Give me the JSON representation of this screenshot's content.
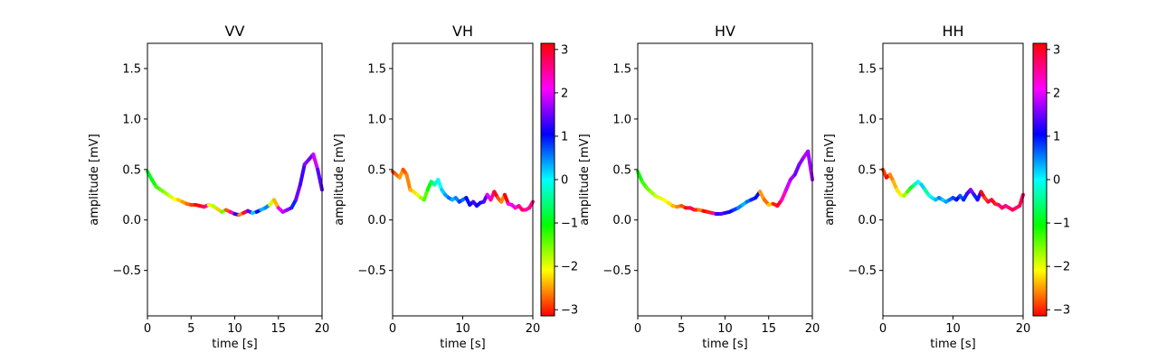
{
  "chart_data": [
    {
      "type": "line",
      "title": "VV",
      "xlabel": "time [s]",
      "ylabel": "amplitude [mV]",
      "xlim": [
        0,
        20
      ],
      "ylim": [
        -0.95,
        1.75
      ],
      "xticks": [
        0,
        5,
        10,
        15,
        20
      ],
      "yticks": [
        -0.5,
        0.0,
        0.5,
        1.0,
        1.5
      ],
      "color_by": "phase",
      "colormap": "hsv",
      "x": [
        0,
        0.5,
        1,
        1.5,
        2,
        2.5,
        3,
        3.5,
        4,
        4.5,
        5,
        5.5,
        6,
        6.5,
        7,
        7.5,
        8,
        8.5,
        9,
        9.5,
        10,
        10.5,
        11,
        11.5,
        12,
        12.5,
        13,
        13.5,
        14,
        14.5,
        15,
        15.5,
        16,
        16.5,
        17,
        17.5,
        18,
        18.5,
        19,
        19.5,
        20
      ],
      "y": [
        0.48,
        0.4,
        0.33,
        0.3,
        0.27,
        0.24,
        0.21,
        0.2,
        0.18,
        0.16,
        0.15,
        0.15,
        0.14,
        0.13,
        0.15,
        0.14,
        0.11,
        0.08,
        0.1,
        0.08,
        0.06,
        0.05,
        0.07,
        0.09,
        0.07,
        0.08,
        0.1,
        0.12,
        0.15,
        0.2,
        0.12,
        0.08,
        0.1,
        0.12,
        0.2,
        0.35,
        0.55,
        0.6,
        0.65,
        0.5,
        0.3
      ],
      "phase": [
        -0.9,
        -1.1,
        -1.3,
        -1.5,
        -1.7,
        -1.9,
        -2.1,
        -2.3,
        -2.5,
        -2.7,
        -2.9,
        -3.1,
        3.0,
        2.6,
        -2.0,
        -1.8,
        -2.3,
        -1.5,
        -2.8,
        2.4,
        1.2,
        -2.6,
        2.9,
        1.4,
        0.2,
        1.0,
        0.3,
        0.5,
        -1.9,
        -2.4,
        2.0,
        1.8,
        1.6,
        0.9,
        1.5,
        1.3,
        1.6,
        1.5,
        1.9,
        1.4,
        1.2
      ]
    },
    {
      "type": "line",
      "title": "VH",
      "xlabel": "time [s]",
      "ylabel": "amplitude [mV]",
      "xlim": [
        0,
        20
      ],
      "ylim": [
        -0.95,
        1.75
      ],
      "xticks": [
        0,
        10,
        20
      ],
      "yticks": [
        -0.5,
        0.0,
        0.5,
        1.0,
        1.5
      ],
      "color_by": "phase",
      "colormap": "hsv",
      "x": [
        0,
        0.5,
        1,
        1.5,
        2,
        2.5,
        3,
        3.5,
        4,
        4.5,
        5,
        5.5,
        6,
        6.5,
        7,
        7.5,
        8,
        8.5,
        9,
        9.5,
        10,
        10.5,
        11,
        11.5,
        12,
        12.5,
        13,
        13.5,
        14,
        14.5,
        15,
        15.5,
        16,
        16.5,
        17,
        17.5,
        18,
        18.5,
        19,
        19.5,
        20
      ],
      "y": [
        0.48,
        0.45,
        0.42,
        0.5,
        0.45,
        0.3,
        0.28,
        0.25,
        0.22,
        0.2,
        0.3,
        0.38,
        0.35,
        0.4,
        0.3,
        0.25,
        0.22,
        0.2,
        0.22,
        0.18,
        0.2,
        0.22,
        0.15,
        0.18,
        0.14,
        0.17,
        0.18,
        0.25,
        0.2,
        0.28,
        0.22,
        0.18,
        0.25,
        0.16,
        0.15,
        0.12,
        0.14,
        0.1,
        0.1,
        0.12,
        0.18
      ],
      "phase": [
        -2.9,
        -2.7,
        -2.5,
        -2.8,
        -2.6,
        -2.4,
        -2.2,
        -2.0,
        -1.7,
        -1.4,
        -1.0,
        -0.6,
        -0.3,
        0.0,
        0.2,
        0.4,
        0.6,
        0.3,
        0.5,
        0.8,
        0.6,
        1.0,
        1.1,
        1.3,
        1.0,
        1.2,
        1.4,
        2.0,
        2.5,
        3.0,
        -2.8,
        -2.6,
        3.1,
        2.2,
        2.0,
        2.3,
        2.6,
        2.8,
        2.4,
        2.6,
        2.9
      ]
    },
    {
      "type": "line",
      "title": "HV",
      "xlabel": "time [s]",
      "ylabel": "amplitude [mV]",
      "xlim": [
        0,
        20
      ],
      "ylim": [
        -0.95,
        1.75
      ],
      "xticks": [
        0,
        5,
        10,
        15,
        20
      ],
      "yticks": [
        -0.5,
        0.0,
        0.5,
        1.0,
        1.5
      ],
      "color_by": "phase",
      "colormap": "hsv",
      "x": [
        0,
        0.5,
        1,
        1.5,
        2,
        2.5,
        3,
        3.5,
        4,
        4.5,
        5,
        5.5,
        6,
        6.5,
        7,
        7.5,
        8,
        8.5,
        9,
        9.5,
        10,
        10.5,
        11,
        11.5,
        12,
        12.5,
        13,
        13.5,
        14,
        14.5,
        15,
        15.5,
        16,
        16.5,
        17,
        17.5,
        18,
        18.5,
        19,
        19.5,
        20
      ],
      "y": [
        0.48,
        0.38,
        0.32,
        0.28,
        0.24,
        0.22,
        0.2,
        0.17,
        0.14,
        0.13,
        0.14,
        0.12,
        0.12,
        0.1,
        0.1,
        0.09,
        0.08,
        0.07,
        0.06,
        0.06,
        0.07,
        0.08,
        0.1,
        0.12,
        0.15,
        0.18,
        0.2,
        0.22,
        0.28,
        0.2,
        0.15,
        0.16,
        0.14,
        0.2,
        0.3,
        0.4,
        0.45,
        0.55,
        0.62,
        0.68,
        0.4
      ],
      "phase": [
        -1.1,
        -1.3,
        -1.5,
        -1.7,
        -1.9,
        -2.0,
        -2.1,
        -2.2,
        -2.4,
        -2.6,
        -2.8,
        3.0,
        2.8,
        -3.0,
        -2.6,
        3.1,
        -3.0,
        2.5,
        1.2,
        1.4,
        1.2,
        1.0,
        0.8,
        0.5,
        0.3,
        0.6,
        0.9,
        1.0,
        -2.5,
        -2.7,
        -2.3,
        -3.0,
        2.9,
        2.3,
        1.9,
        1.7,
        1.5,
        1.6,
        1.8,
        1.7,
        1.9
      ]
    },
    {
      "type": "line",
      "title": "HH",
      "xlabel": "time [s]",
      "ylabel": "amplitude [mV]",
      "xlim": [
        0,
        20
      ],
      "ylim": [
        -0.95,
        1.75
      ],
      "xticks": [
        0,
        10,
        20
      ],
      "yticks": [
        -0.5,
        0.0,
        0.5,
        1.0,
        1.5
      ],
      "color_by": "phase",
      "colormap": "hsv",
      "x": [
        0,
        0.5,
        1,
        1.5,
        2,
        2.5,
        3,
        3.5,
        4,
        4.5,
        5,
        5.5,
        6,
        6.5,
        7,
        7.5,
        8,
        8.5,
        9,
        9.5,
        10,
        10.5,
        11,
        11.5,
        12,
        12.5,
        13,
        13.5,
        14,
        14.5,
        15,
        15.5,
        16,
        16.5,
        17,
        17.5,
        18,
        18.5,
        19,
        19.5,
        20
      ],
      "y": [
        0.5,
        0.42,
        0.45,
        0.38,
        0.3,
        0.25,
        0.24,
        0.28,
        0.32,
        0.35,
        0.38,
        0.35,
        0.3,
        0.25,
        0.22,
        0.2,
        0.22,
        0.2,
        0.18,
        0.2,
        0.22,
        0.2,
        0.24,
        0.2,
        0.26,
        0.3,
        0.25,
        0.2,
        0.28,
        0.22,
        0.18,
        0.2,
        0.16,
        0.15,
        0.12,
        0.14,
        0.12,
        0.1,
        0.12,
        0.14,
        0.25
      ],
      "phase": [
        -2.9,
        -3.1,
        -2.6,
        -2.4,
        -2.2,
        -2.0,
        -1.7,
        -1.3,
        -0.8,
        -0.3,
        0.0,
        0.2,
        -0.4,
        -0.1,
        0.1,
        0.3,
        0.5,
        0.2,
        0.4,
        0.6,
        0.8,
        1.0,
        0.7,
        0.9,
        1.3,
        1.6,
        0.9,
        1.2,
        3.1,
        -2.9,
        2.8,
        3.0,
        -3.0,
        2.6,
        2.8,
        2.5,
        2.7,
        2.9,
        2.6,
        2.8,
        -2.9
      ]
    }
  ],
  "colorbars": [
    {
      "attached_to": "VH",
      "range": [
        -3.14159,
        3.14159
      ],
      "ticks": [
        -3,
        -2,
        -1,
        0,
        1,
        2,
        3
      ],
      "colormap": "hsv"
    },
    {
      "attached_to": "HH",
      "range": [
        -3.14159,
        3.14159
      ],
      "ticks": [
        -3,
        -2,
        -1,
        0,
        1,
        2,
        3
      ],
      "colormap": "hsv"
    }
  ]
}
